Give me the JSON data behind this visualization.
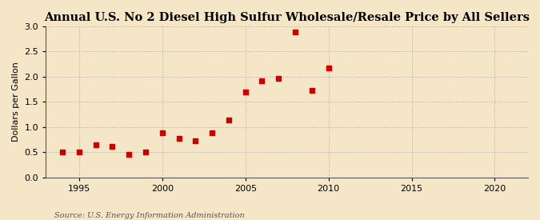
{
  "title": "Annual U.S. No 2 Diesel High Sulfur Wholesale/Resale Price by All Sellers",
  "ylabel": "Dollars per Gallon",
  "source": "Source: U.S. Energy Information Administration",
  "years": [
    1994,
    1995,
    1996,
    1997,
    1998,
    1999,
    2000,
    2001,
    2002,
    2003,
    2004,
    2005,
    2006,
    2007,
    2008,
    2009,
    2010
  ],
  "values": [
    0.51,
    0.51,
    0.64,
    0.62,
    0.46,
    0.51,
    0.88,
    0.78,
    0.72,
    0.88,
    1.14,
    1.7,
    1.92,
    1.97,
    2.89,
    1.73,
    2.17
  ],
  "xlim": [
    1993,
    2022
  ],
  "ylim": [
    0.0,
    3.0
  ],
  "xticks": [
    1995,
    2000,
    2005,
    2010,
    2015,
    2020
  ],
  "yticks": [
    0.0,
    0.5,
    1.0,
    1.5,
    2.0,
    2.5,
    3.0
  ],
  "marker_color": "#cc0000",
  "marker": "s",
  "marker_size": 4,
  "bg_color": "#f5e6c8",
  "grid_color": "#aaaaaa",
  "title_fontsize": 10.5,
  "label_fontsize": 8,
  "tick_fontsize": 8,
  "source_fontsize": 7
}
